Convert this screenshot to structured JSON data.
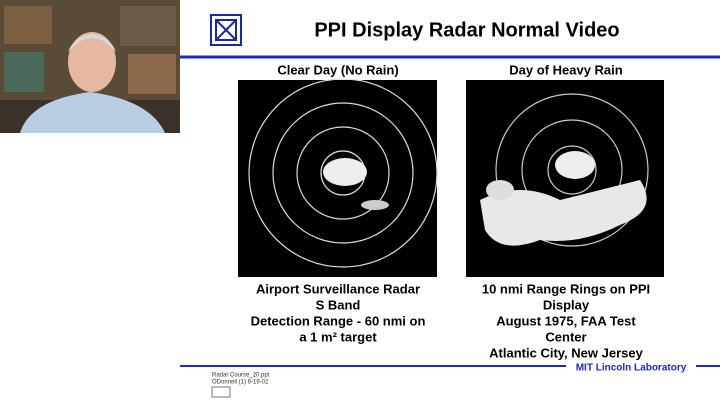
{
  "slide": {
    "title": "PPI Display Radar Normal Video",
    "left": {
      "heading": "Clear Day (No Rain)",
      "caption": [
        "Airport Surveillance Radar",
        "S Band",
        "Detection Range -  60 nmi on",
        "a 1 m² target"
      ]
    },
    "right": {
      "heading": "Day of Heavy Rain",
      "caption": [
        "10 nmi Range Rings on PPI",
        "Display",
        "August 1975,  FAA Test",
        "Center",
        "Atlantic City, New Jersey"
      ]
    },
    "footer": {
      "file": "Radar Course_20.ppt",
      "author": "ODonnell (1) 6-19-02",
      "lab": "MIT Lincoln Laboratory"
    }
  }
}
